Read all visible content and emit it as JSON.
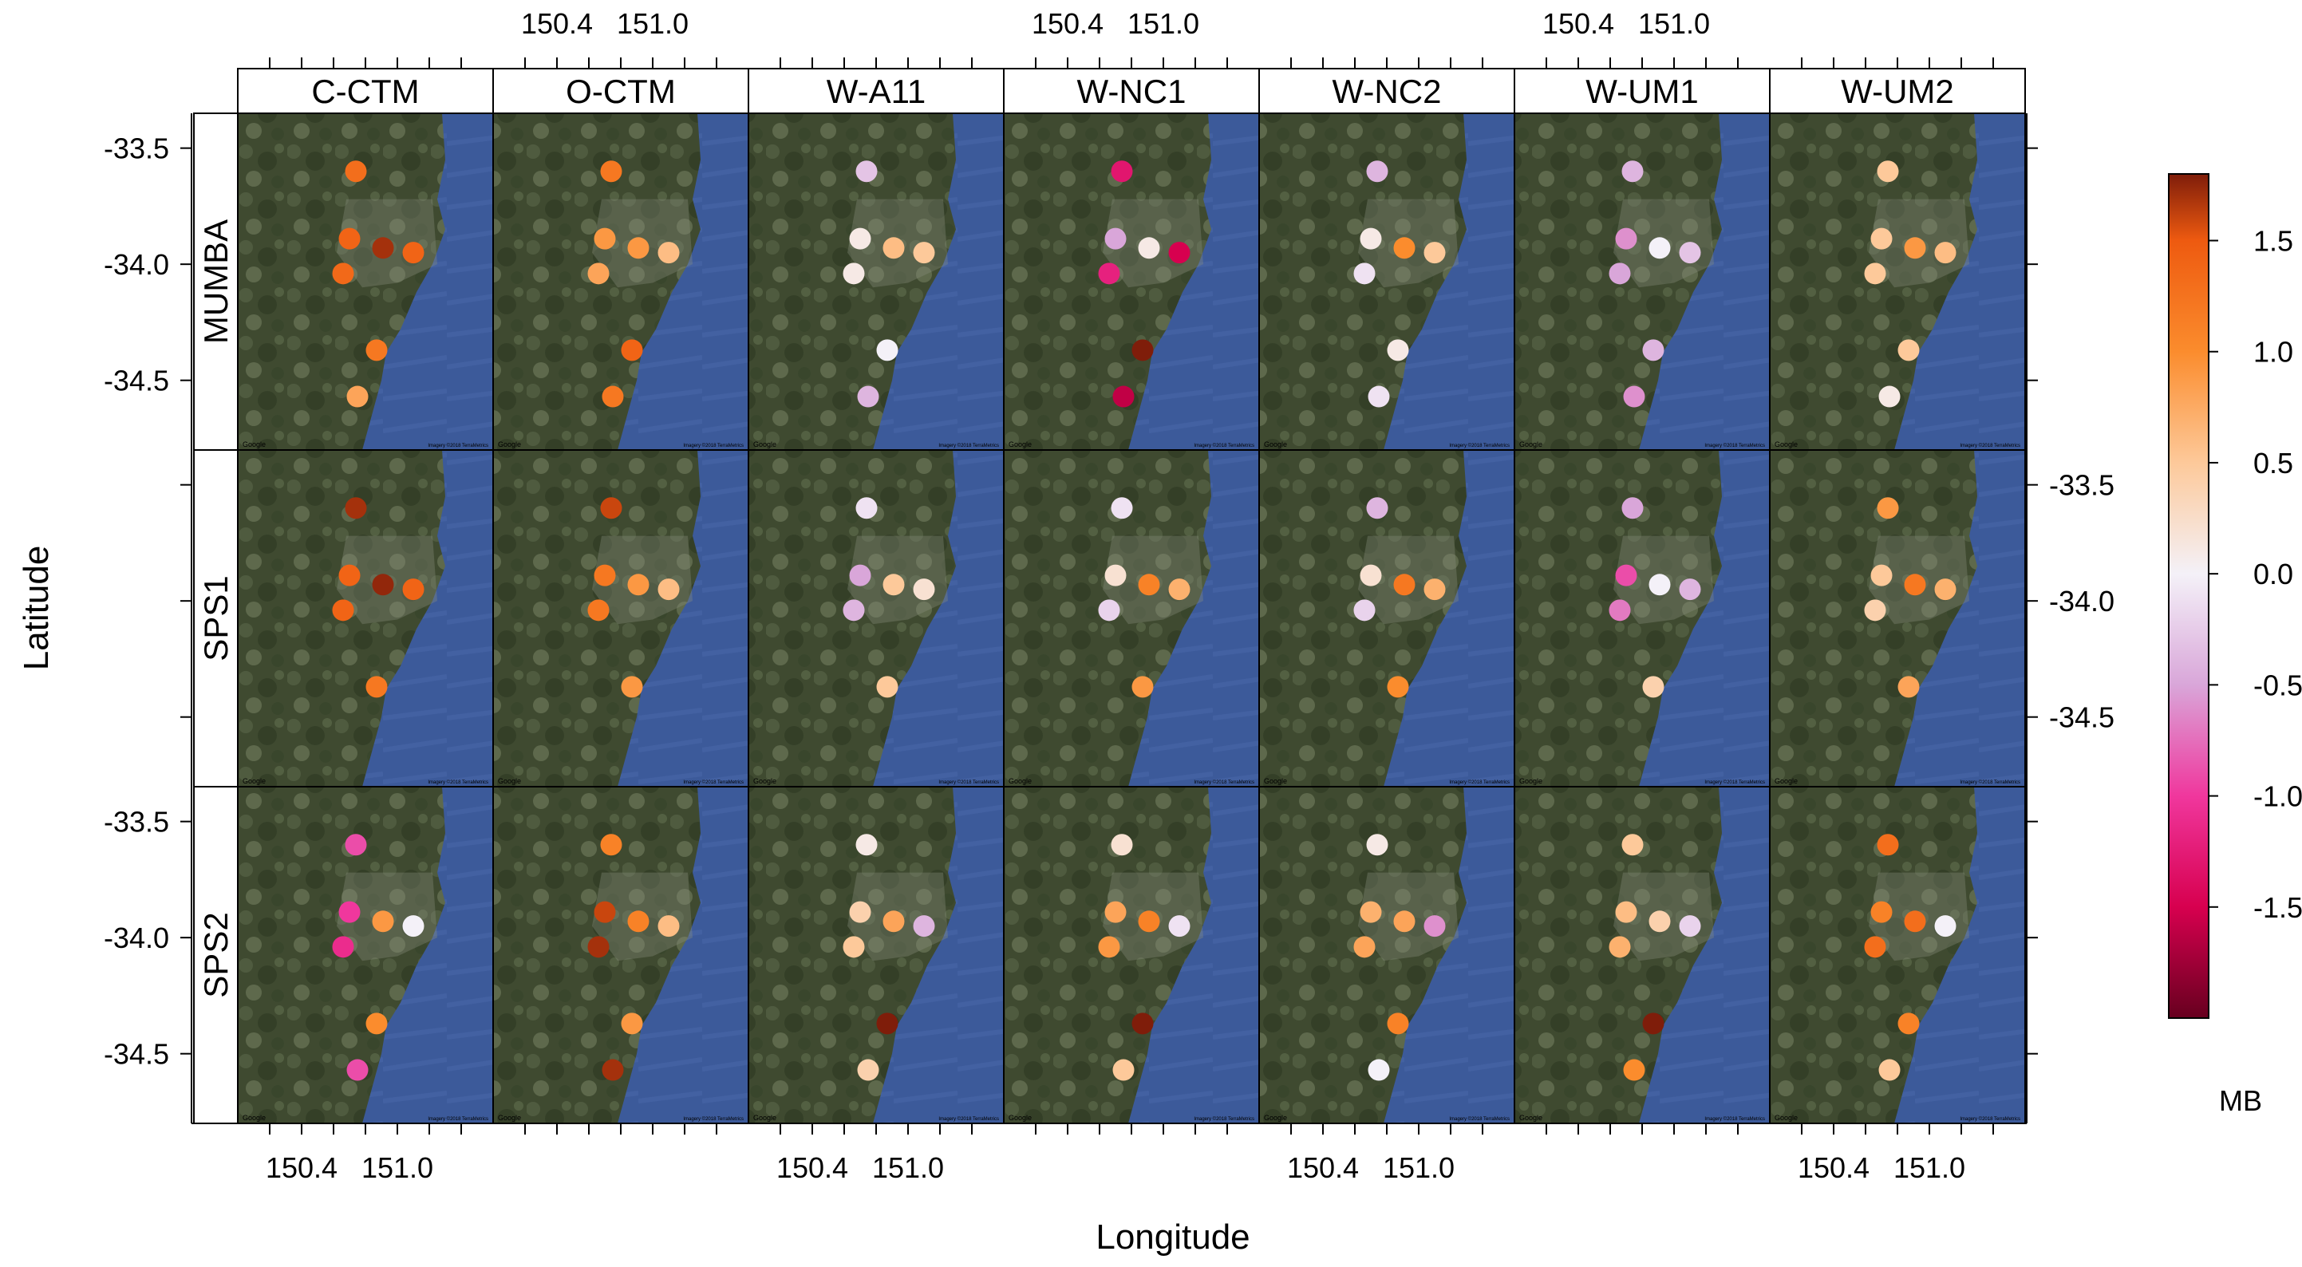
{
  "chart_data": {
    "type": "scatter",
    "xlabel": "Longitude",
    "ylabel": "Latitude",
    "legend_title": "MB",
    "legend_placement": "right",
    "grid": false,
    "models": [
      "C-CTM",
      "O-CTM",
      "W-A11",
      "W-NC1",
      "W-NC2",
      "W-UM1",
      "W-UM2"
    ],
    "campaigns": [
      "MUMBA",
      "SPS1",
      "SPS2"
    ],
    "xlim": [
      150.0,
      151.6
    ],
    "ylim": [
      -34.8,
      -33.35
    ],
    "x_ticks": [
      150.4,
      151.0
    ],
    "x_tick_labels": [
      "150.4",
      "151.0"
    ],
    "y_ticks": [
      -33.5,
      -34.0,
      -34.5
    ],
    "y_tick_labels": [
      "-33.5",
      "-34.0",
      "-34.5"
    ],
    "colorbar": {
      "min": -2.0,
      "max": 1.8,
      "ticks": [
        1.5,
        1.0,
        0.5,
        0.0,
        -0.5,
        -1.0,
        -1.5
      ],
      "tick_labels": [
        "1.5",
        "1.0",
        "0.5",
        "0.0",
        "-0.5",
        "-1.0",
        "-1.5"
      ],
      "stops": [
        {
          "value": -2.0,
          "color": "#67001f"
        },
        {
          "value": -1.5,
          "color": "#d7004f"
        },
        {
          "value": -1.0,
          "color": "#f0379d"
        },
        {
          "value": -0.5,
          "color": "#d9a6d9"
        },
        {
          "value": 0.0,
          "color": "#f4f1f8"
        },
        {
          "value": 0.5,
          "color": "#fdc99a"
        },
        {
          "value": 1.0,
          "color": "#fb8c2d"
        },
        {
          "value": 1.5,
          "color": "#ee5a10"
        },
        {
          "value": 1.8,
          "color": "#7f1d0a"
        }
      ]
    },
    "map": {
      "land_color": "#3f4a30",
      "sea_color": "#3c5a9a",
      "attribution_left": "Google",
      "attribution_right": "Imagery ©2018 TerraMetrics"
    },
    "stations": [
      {
        "lon": 150.74,
        "lat": -33.6
      },
      {
        "lon": 150.7,
        "lat": -33.89
      },
      {
        "lon": 150.66,
        "lat": -34.04
      },
      {
        "lon": 150.91,
        "lat": -33.93
      },
      {
        "lon": 151.1,
        "lat": -33.95
      },
      {
        "lon": 150.87,
        "lat": -34.37
      },
      {
        "lon": 150.75,
        "lat": -34.57
      }
    ],
    "panels": [
      {
        "campaign": "MUMBA",
        "model": "C-CTM",
        "mb": [
          1.3,
          1.4,
          1.35,
          1.7,
          1.4,
          1.2,
          0.8
        ]
      },
      {
        "campaign": "MUMBA",
        "model": "O-CTM",
        "mb": [
          1.2,
          0.9,
          0.8,
          0.9,
          0.6,
          1.4,
          1.2
        ]
      },
      {
        "campaign": "MUMBA",
        "model": "W-A11",
        "mb": [
          -0.3,
          0.1,
          0.1,
          0.6,
          0.5,
          0.0,
          -0.4
        ]
      },
      {
        "campaign": "MUMBA",
        "model": "W-NC1",
        "mb": [
          -1.3,
          -0.5,
          -1.2,
          0.1,
          -1.5,
          1.9,
          -1.6
        ]
      },
      {
        "campaign": "MUMBA",
        "model": "W-NC2",
        "mb": [
          -0.4,
          0.1,
          -0.1,
          1.0,
          0.5,
          0.1,
          -0.1
        ]
      },
      {
        "campaign": "MUMBA",
        "model": "W-UM1",
        "mb": [
          -0.4,
          -0.6,
          -0.5,
          0.0,
          -0.3,
          -0.4,
          -0.6
        ]
      },
      {
        "campaign": "MUMBA",
        "model": "W-UM2",
        "mb": [
          0.5,
          0.5,
          0.5,
          0.9,
          0.6,
          0.5,
          0.1
        ]
      },
      {
        "campaign": "SPS1",
        "model": "C-CTM",
        "mb": [
          1.7,
          1.4,
          1.4,
          1.75,
          1.4,
          1.2,
          null
        ]
      },
      {
        "campaign": "SPS1",
        "model": "O-CTM",
        "mb": [
          1.6,
          1.2,
          1.2,
          0.9,
          0.6,
          0.9,
          null
        ]
      },
      {
        "campaign": "SPS1",
        "model": "W-A11",
        "mb": [
          -0.1,
          -0.5,
          -0.4,
          0.5,
          0.2,
          0.5,
          null
        ]
      },
      {
        "campaign": "SPS1",
        "model": "W-NC1",
        "mb": [
          -0.1,
          0.2,
          -0.2,
          1.1,
          0.7,
          0.9,
          null
        ]
      },
      {
        "campaign": "SPS1",
        "model": "W-NC2",
        "mb": [
          -0.4,
          0.2,
          -0.2,
          1.2,
          0.7,
          1.0,
          null
        ]
      },
      {
        "campaign": "SPS1",
        "model": "W-UM1",
        "mb": [
          -0.5,
          -0.9,
          -0.7,
          0.0,
          -0.4,
          0.4,
          null
        ]
      },
      {
        "campaign": "SPS1",
        "model": "W-UM2",
        "mb": [
          0.9,
          0.5,
          0.4,
          1.2,
          0.7,
          0.8,
          null
        ]
      },
      {
        "campaign": "SPS2",
        "model": "C-CTM",
        "mb": [
          -0.9,
          -1.0,
          -1.1,
          0.9,
          0.0,
          1.0,
          -0.9
        ]
      },
      {
        "campaign": "SPS2",
        "model": "O-CTM",
        "mb": [
          1.1,
          1.6,
          1.7,
          1.1,
          0.6,
          0.9,
          1.7
        ]
      },
      {
        "campaign": "SPS2",
        "model": "W-A11",
        "mb": [
          0.1,
          0.4,
          0.5,
          0.8,
          -0.4,
          1.8,
          0.4
        ]
      },
      {
        "campaign": "SPS2",
        "model": "W-NC1",
        "mb": [
          0.2,
          0.8,
          0.9,
          1.1,
          -0.1,
          1.8,
          0.5
        ]
      },
      {
        "campaign": "SPS2",
        "model": "W-NC2",
        "mb": [
          0.1,
          0.7,
          0.8,
          0.8,
          -0.6,
          1.1,
          0.0
        ]
      },
      {
        "campaign": "SPS2",
        "model": "W-UM1",
        "mb": [
          0.5,
          0.6,
          0.7,
          0.4,
          -0.2,
          1.8,
          1.0
        ]
      },
      {
        "campaign": "SPS2",
        "model": "W-UM2",
        "mb": [
          1.3,
          1.1,
          1.3,
          1.3,
          0.0,
          1.1,
          0.5
        ]
      }
    ]
  }
}
